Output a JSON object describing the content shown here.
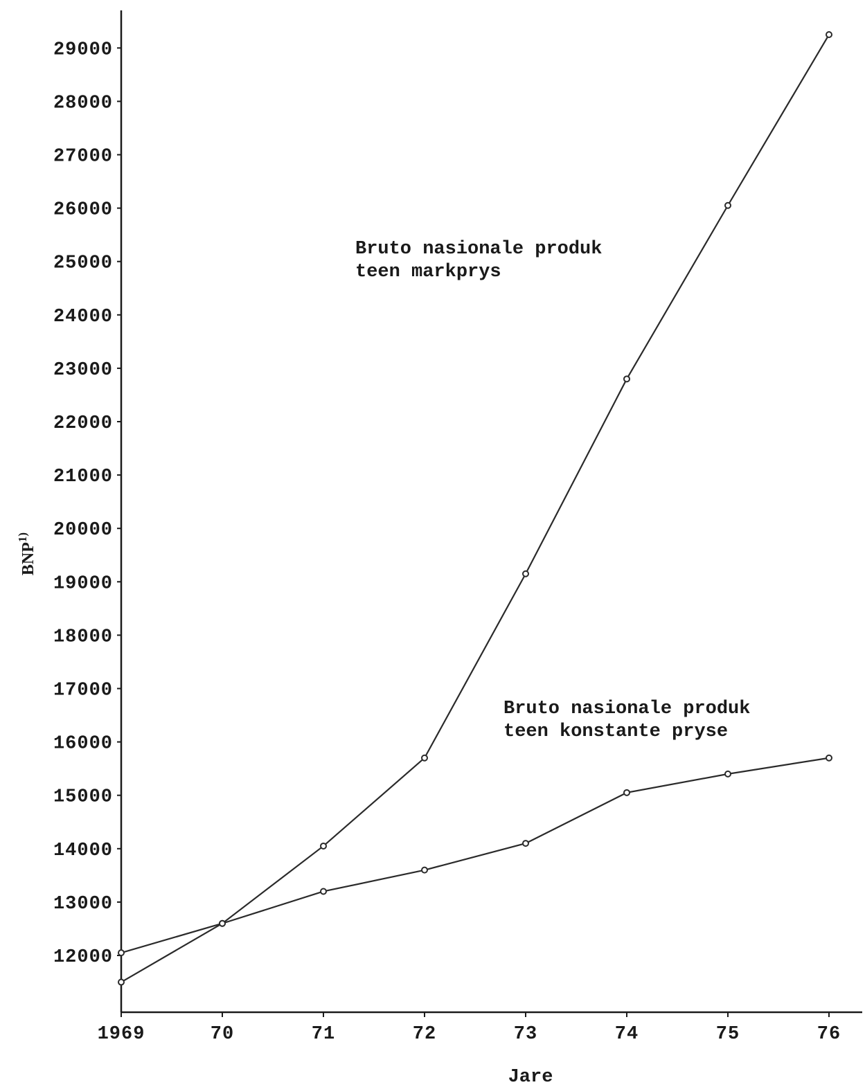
{
  "chart_data": {
    "type": "line",
    "xlabel": "Jare",
    "ylabel": "BNP",
    "ylabel_superscript": "1)",
    "x": [
      1969,
      1970,
      1971,
      1972,
      1973,
      1974,
      1975,
      1976
    ],
    "x_tick_labels": [
      "1969",
      "70",
      "71",
      "72",
      "73",
      "74",
      "75",
      "76"
    ],
    "y_ticks": [
      12000,
      13000,
      14000,
      15000,
      16000,
      17000,
      18000,
      19000,
      20000,
      21000,
      22000,
      23000,
      24000,
      25000,
      26000,
      27000,
      28000,
      29000
    ],
    "y_tick_labels": [
      "12000",
      "13000",
      "14000",
      "15000",
      "16000",
      "17000",
      "18000",
      "19000",
      "20000",
      "21000",
      "22000",
      "23000",
      "24000",
      "25000",
      "26000",
      "27000",
      "28000",
      "29000"
    ],
    "ylim": [
      11300,
      30000
    ],
    "series": [
      {
        "annotation": [
          "Bruto nasionale produk",
          "teen markprys"
        ],
        "values": [
          11500,
          12600,
          14050,
          15700,
          19150,
          22800,
          26050,
          29250
        ]
      },
      {
        "annotation": [
          "Bruto nasionale produk",
          "teen konstante pryse"
        ],
        "values": [
          12050,
          12600,
          13200,
          13600,
          14100,
          15050,
          15400,
          15700
        ]
      }
    ]
  }
}
